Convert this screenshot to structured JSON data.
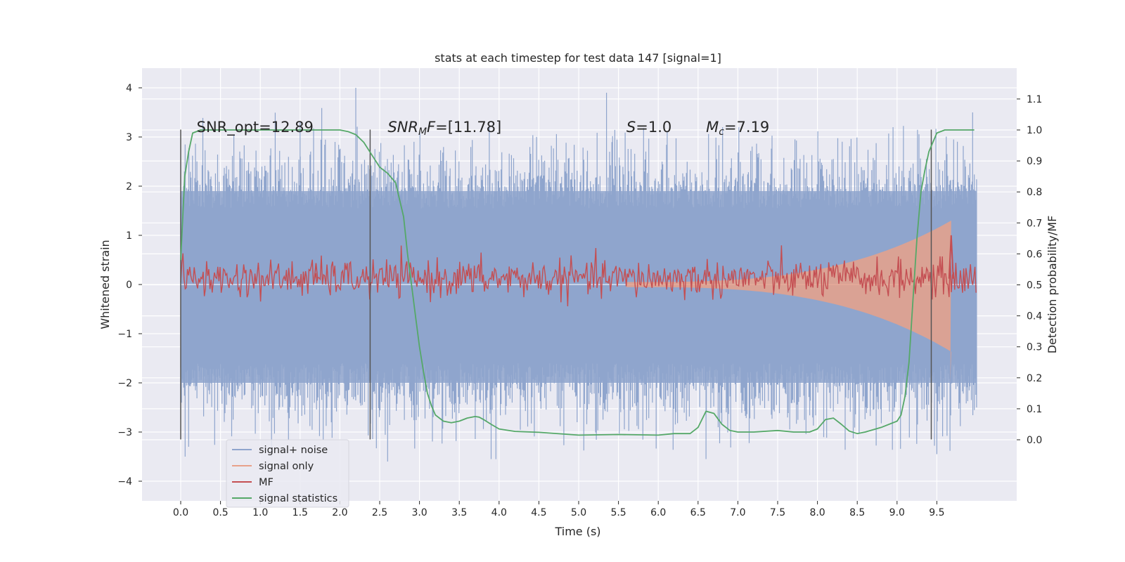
{
  "chart_data": {
    "type": "line",
    "title": "stats at each timestep for test data 147 [signal=1]",
    "xlabel": "Time (s)",
    "ylabel_left": "Whitened strain",
    "ylabel_right": "Detection probability/MF",
    "xlim": [
      -0.48,
      10.51
    ],
    "ylim_left": [
      -4.4,
      4.4
    ],
    "ylim_right": [
      -0.2,
      1.2
    ],
    "x_ticks": [
      0.0,
      0.5,
      1.0,
      1.5,
      2.0,
      2.5,
      3.0,
      3.5,
      4.0,
      4.5,
      5.0,
      5.5,
      6.0,
      6.5,
      7.0,
      7.5,
      8.0,
      8.5,
      9.0,
      9.5
    ],
    "x_tick_labels": [
      "0.0",
      "0.5",
      "1.0",
      "1.5",
      "2.0",
      "2.5",
      "3.0",
      "3.5",
      "4.0",
      "4.5",
      "5.0",
      "5.5",
      "6.0",
      "6.5",
      "7.0",
      "7.5",
      "8.0",
      "8.5",
      "9.0",
      "9.5"
    ],
    "y_left_ticks": [
      4,
      3,
      2,
      1,
      0,
      -1,
      -2,
      -3,
      -4
    ],
    "y_left_tick_labels": [
      "4",
      "3",
      "2",
      "1",
      "0",
      "−1",
      "−2",
      "−3",
      "−4"
    ],
    "y_right_ticks": [
      1.1,
      1.0,
      0.9,
      0.8,
      0.7,
      0.6,
      0.5,
      0.4,
      0.3,
      0.2,
      0.1,
      0.0
    ],
    "y_right_tick_labels": [
      "1.1",
      "1.0",
      "0.9",
      "0.8",
      "0.7",
      "0.6",
      "0.5",
      "0.4",
      "0.3",
      "0.2",
      "0.1",
      "0.0"
    ],
    "grid": true,
    "legend_position": "lower-left",
    "annotations": [
      {
        "text": "SNR_opt=12.89",
        "x": 0.2,
        "y": 3.1
      },
      {
        "text": "SNR_MF=[11.78]",
        "x": 2.6,
        "y": 3.1
      },
      {
        "text": "S=1.0",
        "x": 5.6,
        "y": 3.1
      },
      {
        "text": "M_c=7.19",
        "x": 6.6,
        "y": 3.1
      }
    ],
    "vertical_markers": [
      0.0,
      2.38,
      9.43
    ],
    "series": [
      {
        "name": "signal+ noise",
        "color": "#8fa5cd",
        "axis": "left",
        "kind": "noise",
        "x_range": [
          0.0,
          10.0
        ],
        "band": [
          -2.0,
          1.9
        ],
        "peaks_max": [
          4.0,
          3.9,
          3.5
        ],
        "peaks_min": [
          -3.6,
          -3.5,
          -3.4
        ]
      },
      {
        "name": "signal only",
        "color": "#e8a18a",
        "axis": "left",
        "kind": "chirp",
        "x_range": [
          5.6,
          9.68
        ],
        "amplitude_start": 0.05,
        "amplitude_end": 1.3
      },
      {
        "name": "MF",
        "color": "#c44e52",
        "axis": "right",
        "kind": "noise",
        "x_range": [
          0.0,
          10.0
        ],
        "level": 0.52,
        "spread": 0.03,
        "peak": {
          "x": 9.68,
          "y": 0.66
        }
      },
      {
        "name": "signal statistics",
        "color": "#55a868",
        "axis": "right",
        "x": [
          0.0,
          0.05,
          0.1,
          0.15,
          0.25,
          0.5,
          1.0,
          1.5,
          2.0,
          2.1,
          2.2,
          2.3,
          2.4,
          2.5,
          2.6,
          2.7,
          2.8,
          2.85,
          2.9,
          2.95,
          3.0,
          3.05,
          3.1,
          3.15,
          3.2,
          3.3,
          3.4,
          3.5,
          3.6,
          3.7,
          3.75,
          3.8,
          3.9,
          4.0,
          4.2,
          4.5,
          5.0,
          5.5,
          6.0,
          6.2,
          6.4,
          6.5,
          6.6,
          6.7,
          6.8,
          6.9,
          7.0,
          7.2,
          7.5,
          7.7,
          7.9,
          8.0,
          8.1,
          8.2,
          8.3,
          8.4,
          8.5,
          8.6,
          8.8,
          9.0,
          9.05,
          9.1,
          9.15,
          9.2,
          9.25,
          9.3,
          9.35,
          9.4,
          9.45,
          9.5,
          9.6,
          9.7,
          9.8,
          9.9,
          9.97
        ],
        "y": [
          0.58,
          0.85,
          0.93,
          0.99,
          1.0,
          1.0,
          1.0,
          1.0,
          1.0,
          0.995,
          0.985,
          0.96,
          0.92,
          0.88,
          0.86,
          0.83,
          0.72,
          0.6,
          0.5,
          0.4,
          0.3,
          0.22,
          0.15,
          0.11,
          0.08,
          0.06,
          0.055,
          0.06,
          0.07,
          0.075,
          0.073,
          0.066,
          0.05,
          0.035,
          0.027,
          0.024,
          0.015,
          0.017,
          0.015,
          0.02,
          0.02,
          0.04,
          0.092,
          0.085,
          0.05,
          0.03,
          0.025,
          0.025,
          0.03,
          0.025,
          0.025,
          0.035,
          0.065,
          0.07,
          0.05,
          0.028,
          0.02,
          0.025,
          0.04,
          0.06,
          0.08,
          0.14,
          0.25,
          0.45,
          0.65,
          0.8,
          0.87,
          0.93,
          0.96,
          0.99,
          1.0,
          1.0,
          1.0,
          1.0,
          1.0
        ]
      }
    ]
  }
}
